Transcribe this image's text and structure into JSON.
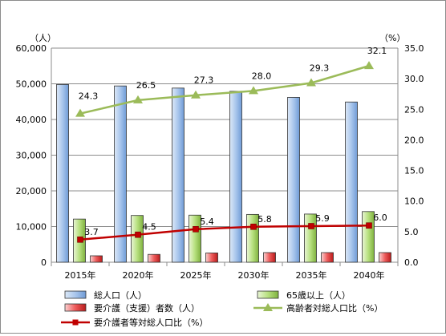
{
  "chart_data": {
    "type": "bar",
    "categories": [
      "2015年",
      "2020年",
      "2025年",
      "2030年",
      "2035年",
      "2040年"
    ],
    "bar_series": [
      {
        "name": "総人口（人）",
        "values": [
          49800,
          49400,
          48800,
          47900,
          46200,
          44900
        ],
        "color": "#8fb4e3"
      },
      {
        "name": "65歳以上（人）",
        "values": [
          12100,
          13100,
          13200,
          13400,
          13500,
          14200
        ],
        "color": "#9bd35d"
      },
      {
        "name": "要介護（支援）者数（人）",
        "values": [
          1800,
          2200,
          2600,
          2700,
          2700,
          2700
        ],
        "color": "#e03a3a"
      }
    ],
    "line_series": [
      {
        "name": "高齢者対総人口比（%）",
        "values": [
          24.3,
          26.5,
          27.3,
          28.0,
          29.3,
          32.1
        ],
        "labels": [
          "24.3",
          "26.5",
          "27.3",
          "28.0",
          "29.3",
          "32.1"
        ],
        "color": "#9bbb59",
        "marker": "triangle"
      },
      {
        "name": "要介護者等対総人口比（%）",
        "values": [
          3.7,
          4.5,
          5.4,
          5.8,
          5.9,
          6.0
        ],
        "labels": [
          "3.7",
          "4.5",
          "5.4",
          "5.8",
          "5.9",
          "6.0"
        ],
        "color": "#c00000",
        "marker": "square"
      }
    ],
    "y_left": {
      "unit": "（人）",
      "min": 0,
      "max": 60000,
      "step": 10000,
      "tick_labels": [
        "0",
        "10,000",
        "20,000",
        "30,000",
        "40,000",
        "50,000",
        "60,000"
      ]
    },
    "y_right": {
      "unit": "（%）",
      "min": 0,
      "max": 35,
      "step": 5,
      "tick_labels": [
        "0.0",
        "5.0",
        "10.0",
        "15.0",
        "20.0",
        "25.0",
        "30.0",
        "35.0"
      ]
    },
    "grid": true,
    "legend_position": "bottom"
  }
}
